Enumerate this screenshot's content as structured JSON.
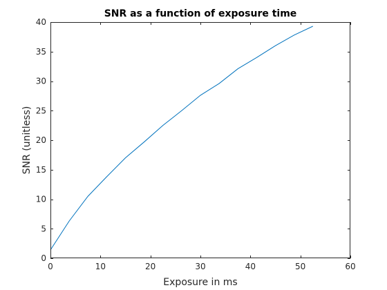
{
  "chart_data": {
    "type": "line",
    "title": "SNR as a function of exposure time",
    "xlabel": "Exposure in ms",
    "ylabel": "SNR (unitless)",
    "xlim": [
      0,
      60
    ],
    "ylim": [
      0,
      40
    ],
    "xticks": [
      0,
      10,
      20,
      30,
      40,
      50,
      60
    ],
    "yticks": [
      0,
      5,
      10,
      15,
      20,
      25,
      30,
      35,
      40
    ],
    "xtick_labels": [
      "0",
      "10",
      "20",
      "30",
      "40",
      "50",
      "60"
    ],
    "ytick_labels": [
      "0",
      "5",
      "10",
      "15",
      "20",
      "25",
      "30",
      "35",
      "40"
    ],
    "grid": false,
    "series": [
      {
        "color": "#0072bd",
        "x": [
          0,
          3.75,
          7.5,
          11.25,
          15,
          18.75,
          22.5,
          26.25,
          30,
          33.75,
          37.5,
          41.25,
          45,
          48.75,
          52.5
        ],
        "y": [
          1.4,
          6.3,
          10.5,
          13.8,
          17.0,
          19.7,
          22.5,
          25.0,
          27.6,
          29.6,
          32.1,
          34.0,
          36.0,
          37.8,
          39.3
        ]
      }
    ]
  }
}
